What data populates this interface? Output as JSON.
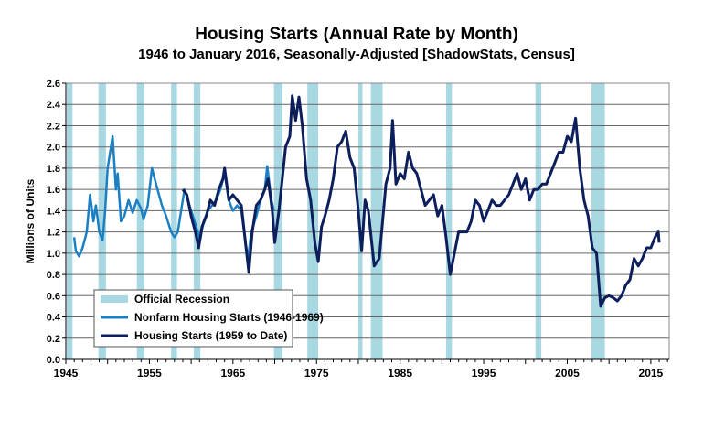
{
  "chart_data": {
    "type": "line",
    "title": "Housing Starts (Annual Rate by Month)",
    "subtitle": "1946 to January 2016, Seasonally-Adjusted [ShadowStats, Census]",
    "xlabel": "",
    "ylabel": "Millions of Units",
    "xlim": [
      1945,
      2017.2
    ],
    "ylim": [
      0,
      2.6
    ],
    "x_ticks": [
      "1945",
      "1955",
      "1965",
      "1975",
      "1985",
      "1995",
      "2005",
      "2015"
    ],
    "y_ticks": [
      "0.0",
      "0.2",
      "0.4",
      "0.6",
      "0.8",
      "1.0",
      "1.2",
      "1.4",
      "1.6",
      "1.8",
      "2.0",
      "2.2",
      "2.4",
      "2.6"
    ],
    "grid": "horizontal",
    "legend_position": "bottom-left",
    "recession_label": "Official Recession",
    "recession_color": "#a8d8e2",
    "recessions": [
      [
        1945.1,
        1945.8
      ],
      [
        1948.9,
        1949.8
      ],
      [
        1953.5,
        1954.4
      ],
      [
        1957.6,
        1958.3
      ],
      [
        1960.3,
        1961.1
      ],
      [
        1969.9,
        1970.9
      ],
      [
        1973.9,
        1975.2
      ],
      [
        1980.0,
        1980.5
      ],
      [
        1981.5,
        1982.9
      ],
      [
        1990.5,
        1991.2
      ],
      [
        2001.2,
        2001.9
      ],
      [
        2007.9,
        2009.5
      ]
    ],
    "series": [
      {
        "name": "Nonfarm Housing Starts (1946-1969)",
        "color": "#1b7fc4",
        "points": [
          [
            1946.0,
            1.15
          ],
          [
            1946.2,
            1.02
          ],
          [
            1946.6,
            0.97
          ],
          [
            1947.0,
            1.05
          ],
          [
            1947.5,
            1.2
          ],
          [
            1947.9,
            1.55
          ],
          [
            1948.3,
            1.3
          ],
          [
            1948.6,
            1.45
          ],
          [
            1949.0,
            1.2
          ],
          [
            1949.4,
            1.12
          ],
          [
            1949.7,
            1.4
          ],
          [
            1950.0,
            1.8
          ],
          [
            1950.4,
            2.0
          ],
          [
            1950.6,
            2.1
          ],
          [
            1951.0,
            1.6
          ],
          [
            1951.2,
            1.75
          ],
          [
            1951.6,
            1.3
          ],
          [
            1952.0,
            1.35
          ],
          [
            1952.5,
            1.5
          ],
          [
            1953.0,
            1.38
          ],
          [
            1953.5,
            1.5
          ],
          [
            1954.0,
            1.42
          ],
          [
            1954.3,
            1.32
          ],
          [
            1954.8,
            1.45
          ],
          [
            1955.3,
            1.8
          ],
          [
            1955.8,
            1.65
          ],
          [
            1956.5,
            1.45
          ],
          [
            1957.0,
            1.35
          ],
          [
            1957.6,
            1.2
          ],
          [
            1958.0,
            1.15
          ],
          [
            1958.4,
            1.2
          ],
          [
            1958.8,
            1.4
          ],
          [
            1959.2,
            1.6
          ],
          [
            1959.8,
            1.45
          ],
          [
            1960.4,
            1.3
          ],
          [
            1960.8,
            1.2
          ],
          [
            1961.0,
            1.1
          ],
          [
            1961.5,
            1.3
          ],
          [
            1962.0,
            1.4
          ],
          [
            1962.5,
            1.45
          ],
          [
            1963.0,
            1.5
          ],
          [
            1963.5,
            1.6
          ],
          [
            1964.0,
            1.75
          ],
          [
            1964.5,
            1.5
          ],
          [
            1965.0,
            1.4
          ],
          [
            1965.5,
            1.45
          ],
          [
            1966.0,
            1.4
          ],
          [
            1966.5,
            1.1
          ],
          [
            1966.8,
            0.95
          ],
          [
            1967.2,
            1.2
          ],
          [
            1967.8,
            1.35
          ],
          [
            1968.3,
            1.5
          ],
          [
            1968.8,
            1.6
          ],
          [
            1969.1,
            1.82
          ],
          [
            1969.6,
            1.5
          ],
          [
            1969.9,
            1.4
          ]
        ]
      },
      {
        "name": "Housing Starts (1959 to Date)",
        "color": "#0c1f5c",
        "points": [
          [
            1959.0,
            1.6
          ],
          [
            1959.5,
            1.55
          ],
          [
            1960.0,
            1.35
          ],
          [
            1960.5,
            1.2
          ],
          [
            1960.9,
            1.05
          ],
          [
            1961.3,
            1.25
          ],
          [
            1961.8,
            1.35
          ],
          [
            1962.3,
            1.5
          ],
          [
            1962.8,
            1.45
          ],
          [
            1963.3,
            1.6
          ],
          [
            1963.8,
            1.7
          ],
          [
            1964.0,
            1.8
          ],
          [
            1964.5,
            1.5
          ],
          [
            1965.0,
            1.55
          ],
          [
            1965.5,
            1.5
          ],
          [
            1966.0,
            1.45
          ],
          [
            1966.5,
            1.1
          ],
          [
            1966.9,
            0.82
          ],
          [
            1967.3,
            1.2
          ],
          [
            1967.8,
            1.45
          ],
          [
            1968.3,
            1.5
          ],
          [
            1968.8,
            1.6
          ],
          [
            1969.2,
            1.7
          ],
          [
            1969.7,
            1.4
          ],
          [
            1970.0,
            1.1
          ],
          [
            1970.5,
            1.4
          ],
          [
            1970.9,
            1.7
          ],
          [
            1971.3,
            2.0
          ],
          [
            1971.8,
            2.1
          ],
          [
            1972.1,
            2.48
          ],
          [
            1972.5,
            2.25
          ],
          [
            1972.9,
            2.47
          ],
          [
            1973.3,
            2.2
          ],
          [
            1973.8,
            1.7
          ],
          [
            1974.3,
            1.5
          ],
          [
            1974.8,
            1.1
          ],
          [
            1975.2,
            0.92
          ],
          [
            1975.6,
            1.25
          ],
          [
            1976.0,
            1.35
          ],
          [
            1976.5,
            1.5
          ],
          [
            1977.0,
            1.7
          ],
          [
            1977.5,
            2.0
          ],
          [
            1978.0,
            2.05
          ],
          [
            1978.5,
            2.15
          ],
          [
            1979.0,
            1.9
          ],
          [
            1979.5,
            1.8
          ],
          [
            1980.0,
            1.4
          ],
          [
            1980.4,
            1.02
          ],
          [
            1980.8,
            1.5
          ],
          [
            1981.2,
            1.4
          ],
          [
            1981.6,
            1.1
          ],
          [
            1981.9,
            0.88
          ],
          [
            1982.5,
            0.95
          ],
          [
            1982.9,
            1.3
          ],
          [
            1983.3,
            1.65
          ],
          [
            1983.8,
            1.8
          ],
          [
            1984.1,
            2.25
          ],
          [
            1984.5,
            1.65
          ],
          [
            1985.0,
            1.75
          ],
          [
            1985.5,
            1.7
          ],
          [
            1986.0,
            1.95
          ],
          [
            1986.5,
            1.8
          ],
          [
            1987.0,
            1.75
          ],
          [
            1987.5,
            1.6
          ],
          [
            1988.0,
            1.45
          ],
          [
            1988.5,
            1.5
          ],
          [
            1989.0,
            1.55
          ],
          [
            1989.5,
            1.35
          ],
          [
            1990.0,
            1.45
          ],
          [
            1990.5,
            1.15
          ],
          [
            1991.0,
            0.8
          ],
          [
            1991.5,
            1.0
          ],
          [
            1992.0,
            1.2
          ],
          [
            1992.5,
            1.2
          ],
          [
            1993.0,
            1.2
          ],
          [
            1993.5,
            1.3
          ],
          [
            1994.0,
            1.5
          ],
          [
            1994.5,
            1.45
          ],
          [
            1995.0,
            1.3
          ],
          [
            1995.5,
            1.4
          ],
          [
            1996.0,
            1.5
          ],
          [
            1996.5,
            1.45
          ],
          [
            1997.0,
            1.45
          ],
          [
            1997.5,
            1.5
          ],
          [
            1998.0,
            1.55
          ],
          [
            1998.5,
            1.65
          ],
          [
            1999.0,
            1.75
          ],
          [
            1999.5,
            1.6
          ],
          [
            2000.0,
            1.7
          ],
          [
            2000.5,
            1.5
          ],
          [
            2001.0,
            1.6
          ],
          [
            2001.5,
            1.6
          ],
          [
            2002.0,
            1.65
          ],
          [
            2002.5,
            1.65
          ],
          [
            2003.0,
            1.75
          ],
          [
            2003.5,
            1.85
          ],
          [
            2004.0,
            1.95
          ],
          [
            2004.5,
            1.95
          ],
          [
            2005.0,
            2.1
          ],
          [
            2005.5,
            2.05
          ],
          [
            2006.0,
            2.27
          ],
          [
            2006.5,
            1.8
          ],
          [
            2007.0,
            1.5
          ],
          [
            2007.5,
            1.35
          ],
          [
            2008.0,
            1.05
          ],
          [
            2008.5,
            1.0
          ],
          [
            2009.0,
            0.5
          ],
          [
            2009.5,
            0.58
          ],
          [
            2010.0,
            0.6
          ],
          [
            2010.5,
            0.58
          ],
          [
            2011.0,
            0.55
          ],
          [
            2011.5,
            0.6
          ],
          [
            2012.0,
            0.7
          ],
          [
            2012.5,
            0.75
          ],
          [
            2013.0,
            0.95
          ],
          [
            2013.5,
            0.88
          ],
          [
            2014.0,
            0.95
          ],
          [
            2014.5,
            1.05
          ],
          [
            2015.0,
            1.05
          ],
          [
            2015.5,
            1.15
          ],
          [
            2015.9,
            1.2
          ],
          [
            2016.0,
            1.1
          ]
        ]
      }
    ]
  }
}
